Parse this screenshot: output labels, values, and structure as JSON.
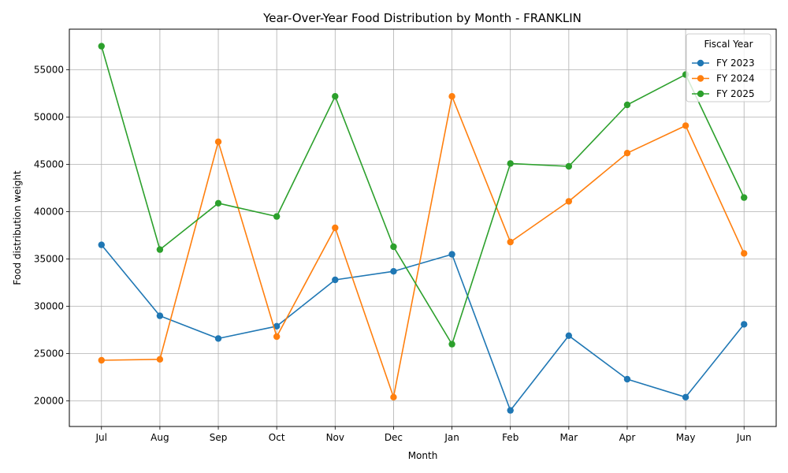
{
  "chart_data": {
    "type": "line",
    "title": "Year-Over-Year Food Distribution by Month - FRANKLIN",
    "xlabel": "Month",
    "ylabel": "Food distribution weight",
    "categories": [
      "Jul",
      "Aug",
      "Sep",
      "Oct",
      "Nov",
      "Dec",
      "Jan",
      "Feb",
      "Mar",
      "Apr",
      "May",
      "Jun"
    ],
    "ylim": [
      17300,
      59300
    ],
    "yticks": [
      20000,
      25000,
      30000,
      35000,
      40000,
      45000,
      50000,
      55000
    ],
    "grid": true,
    "legend": {
      "title": "Fiscal Year",
      "placement": "top-right"
    },
    "series": [
      {
        "name": "FY 2023",
        "color": "#1f77b4",
        "values": [
          36500,
          29000,
          26600,
          27900,
          32800,
          33700,
          35500,
          19000,
          26900,
          22300,
          20400,
          28100
        ]
      },
      {
        "name": "FY 2024",
        "color": "#ff7f0e",
        "values": [
          24300,
          24400,
          47400,
          26800,
          38300,
          20400,
          52200,
          36800,
          41100,
          46200,
          49100,
          35600
        ]
      },
      {
        "name": "FY 2025",
        "color": "#2ca02c",
        "values": [
          57500,
          36000,
          40900,
          39500,
          52200,
          36300,
          26000,
          45100,
          44800,
          51300,
          54500,
          41500
        ]
      }
    ]
  }
}
